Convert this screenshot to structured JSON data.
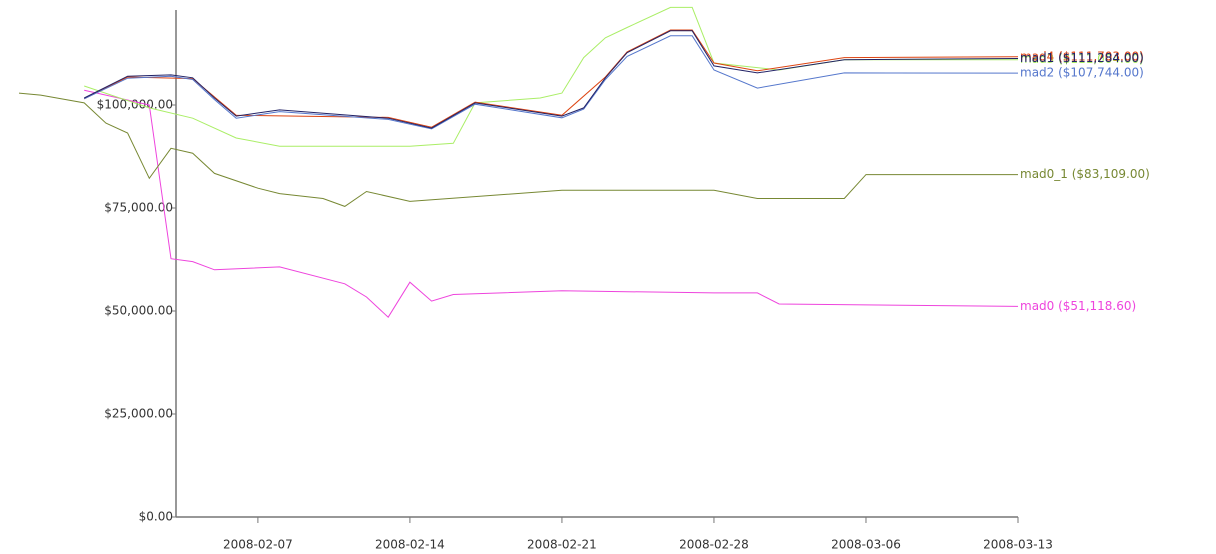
{
  "chart_data": {
    "type": "line",
    "xlim": [
      "2008-01-27",
      "2008-03-13"
    ],
    "xticks": [
      "2008-02-07",
      "2008-02-14",
      "2008-02-21",
      "2008-02-28",
      "2008-03-06",
      "2008-03-13"
    ],
    "ylim": [
      0,
      125000
    ],
    "yticks": [
      {
        "value": 0,
        "label": "$0.00"
      },
      {
        "value": 25000,
        "label": "$25,000.00"
      },
      {
        "value": 50000,
        "label": "$50,000.00"
      },
      {
        "value": 75000,
        "label": "$75,000.00"
      },
      {
        "value": 100000,
        "label": "$100,000.00"
      }
    ],
    "series": [
      {
        "name": "mad0 ($51,118.60)",
        "color": "#ee44dd",
        "x": [
          "2008-01-30",
          "2008-02-02",
          "2008-02-03",
          "2008-02-04",
          "2008-02-05",
          "2008-02-08",
          "2008-02-11",
          "2008-02-12",
          "2008-02-13",
          "2008-02-14",
          "2008-02-15",
          "2008-02-16",
          "2008-02-21",
          "2008-02-28",
          "2008-03-01",
          "2008-03-02",
          "2008-03-13"
        ],
        "values": [
          103600,
          100000,
          62700,
          62000,
          60000,
          60700,
          56600,
          53400,
          48500,
          57000,
          52400,
          54000,
          54900,
          54400,
          54400,
          51700,
          51118.6
        ]
      },
      {
        "name": "mad0_1 ($83,109.00)",
        "color": "#778833",
        "x": [
          "2008-01-27",
          "2008-01-28",
          "2008-01-30",
          "2008-01-31",
          "2008-02-01",
          "2008-02-02",
          "2008-02-03",
          "2008-02-04",
          "2008-02-05",
          "2008-02-07",
          "2008-02-08",
          "2008-02-10",
          "2008-02-11",
          "2008-02-12",
          "2008-02-14",
          "2008-02-21",
          "2008-02-28",
          "2008-03-01",
          "2008-03-05",
          "2008-03-06",
          "2008-03-13"
        ],
        "values": [
          102900,
          102400,
          100500,
          95600,
          93200,
          82200,
          89500,
          88300,
          83400,
          79800,
          78500,
          77300,
          75400,
          79000,
          76600,
          79300,
          79300,
          77300,
          77300,
          83100,
          83109
        ]
      },
      {
        "name": "mad3 ($111,004.00)",
        "color": "#aaee66",
        "x": [
          "2008-01-30",
          "2008-02-02",
          "2008-02-04",
          "2008-02-06",
          "2008-02-08",
          "2008-02-14",
          "2008-02-16",
          "2008-02-17",
          "2008-02-20",
          "2008-02-21",
          "2008-02-22",
          "2008-02-23",
          "2008-02-24",
          "2008-02-26",
          "2008-02-27",
          "2008-02-28",
          "2008-03-02",
          "2008-03-05",
          "2008-03-13"
        ],
        "values": [
          104600,
          99300,
          96800,
          92000,
          90000,
          90000,
          90700,
          100500,
          101700,
          102900,
          111500,
          116300,
          118800,
          123700,
          123700,
          110200,
          108500,
          111000,
          111004
        ]
      },
      {
        "name": "mad4 ($111,703.00)",
        "color": "#dd4411",
        "x": [
          "2008-01-30",
          "2008-02-01",
          "2008-02-04",
          "2008-02-06",
          "2008-02-13",
          "2008-02-15",
          "2008-02-17",
          "2008-02-21",
          "2008-02-23",
          "2008-02-24",
          "2008-02-26",
          "2008-02-27",
          "2008-02-28",
          "2008-03-01",
          "2008-03-05",
          "2008-03-13"
        ],
        "values": [
          101500,
          106800,
          106400,
          97500,
          97000,
          94600,
          100700,
          97500,
          106800,
          112900,
          118200,
          118200,
          110200,
          108300,
          111500,
          111703
        ]
      },
      {
        "name": "mad2 ($107,744.00)",
        "color": "#5577cc",
        "x": [
          "2008-01-30",
          "2008-02-01",
          "2008-02-03",
          "2008-02-04",
          "2008-02-05",
          "2008-02-06",
          "2008-02-08",
          "2008-02-13",
          "2008-02-15",
          "2008-02-17",
          "2008-02-21",
          "2008-02-22",
          "2008-02-23",
          "2008-02-24",
          "2008-02-26",
          "2008-02-27",
          "2008-02-28",
          "2008-03-01",
          "2008-03-05",
          "2008-03-13"
        ],
        "values": [
          101500,
          106500,
          107000,
          106200,
          101300,
          96800,
          98400,
          96500,
          94200,
          100200,
          96900,
          99000,
          106200,
          111800,
          116800,
          116800,
          108500,
          104100,
          107800,
          107744
        ]
      },
      {
        "name": "mad1 ($111,284.00)",
        "color": "#222266",
        "x": [
          "2008-01-30",
          "2008-02-01",
          "2008-02-03",
          "2008-02-04",
          "2008-02-05",
          "2008-02-06",
          "2008-02-08",
          "2008-02-13",
          "2008-02-15",
          "2008-02-17",
          "2008-02-21",
          "2008-02-22",
          "2008-02-23",
          "2008-02-24",
          "2008-02-26",
          "2008-02-27",
          "2008-02-28",
          "2008-03-01",
          "2008-03-05",
          "2008-03-13"
        ],
        "values": [
          101700,
          107000,
          107300,
          106600,
          101700,
          97300,
          98800,
          96800,
          94400,
          100500,
          97300,
          99300,
          106600,
          112700,
          118000,
          118000,
          109500,
          107800,
          111000,
          111284
        ]
      }
    ]
  }
}
